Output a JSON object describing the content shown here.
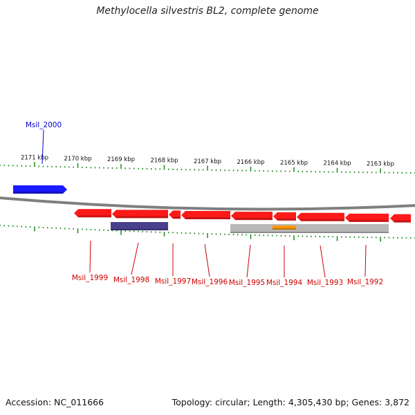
{
  "title": "Methylocella silvestris BL2, complete genome",
  "footer": {
    "accession": "Accession: NC_011666",
    "topology": "Topology: circular; Length: 4,305,430 bp; Genes: 3,872"
  },
  "scale": {
    "unit": "kbp",
    "ticks": [
      "2171 kbp",
      "2170 kbp",
      "2169 kbp",
      "2168 kbp",
      "2167 kbp",
      "2166 kbp",
      "2165 kbp",
      "2164 kbp",
      "2163 kbp"
    ]
  },
  "colors": {
    "forward_gene": "#1a1aff",
    "reverse_gene": "#ff1a1a",
    "rna_feature": "#4a3f8c",
    "misc_feature_grey": "#b8b8b8",
    "misc_feature_orange": "#ff9900",
    "backbone": "#7f7f7f",
    "tick": "#1a8a1a",
    "forward_label": "#0000cc",
    "reverse_label": "#cc0000"
  },
  "genes": [
    {
      "name": "Msil_2000",
      "strand": "forward"
    },
    {
      "name": "Msil_1999",
      "strand": "reverse"
    },
    {
      "name": "Msil_1998",
      "strand": "reverse"
    },
    {
      "name": "Msil_1997",
      "strand": "reverse"
    },
    {
      "name": "Msil_1996",
      "strand": "reverse"
    },
    {
      "name": "Msil_1995",
      "strand": "reverse"
    },
    {
      "name": "Msil_1994",
      "strand": "reverse"
    },
    {
      "name": "Msil_1993",
      "strand": "reverse"
    },
    {
      "name": "Msil_1992",
      "strand": "reverse"
    }
  ]
}
